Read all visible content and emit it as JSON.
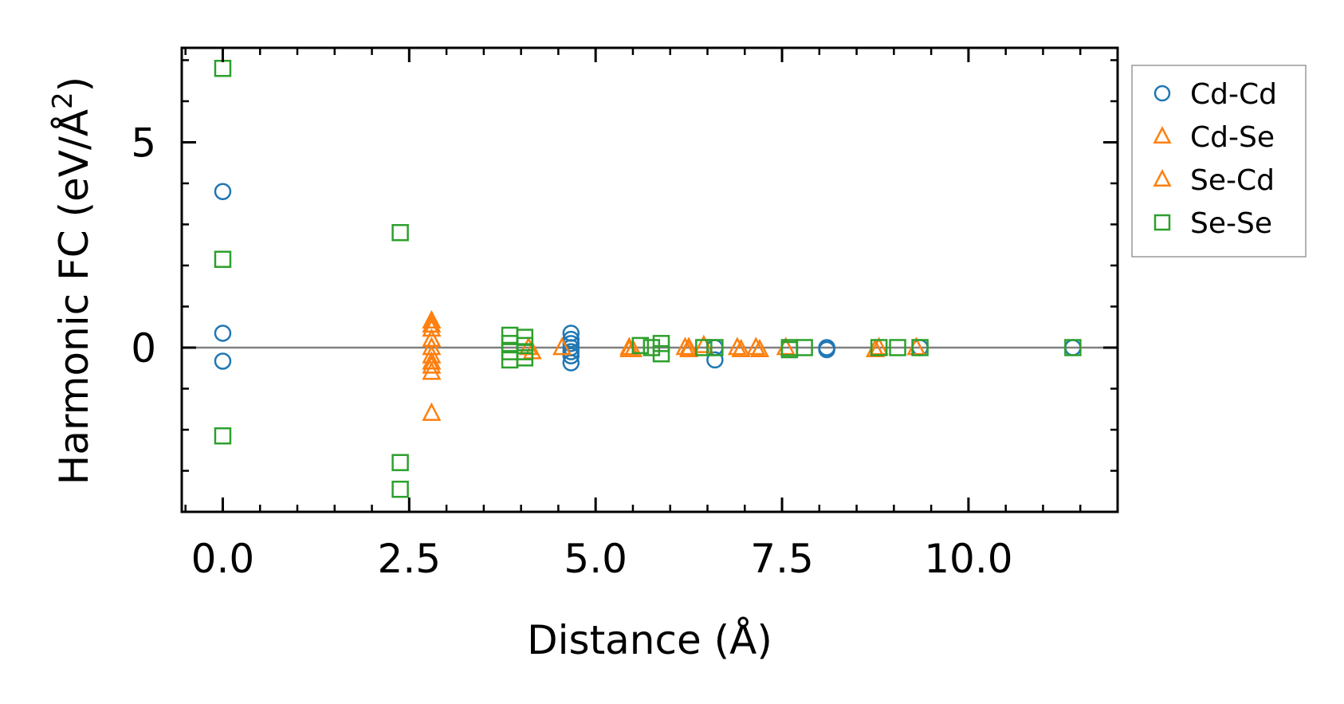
{
  "chart_data": {
    "type": "scatter",
    "xlabel": "Distance (Å)",
    "ylabel_main": "Harmonic FC (eV/Å",
    "ylabel_sup": "2",
    "ylabel_close": ")",
    "xlim": [
      -0.55,
      12.0
    ],
    "ylim": [
      -4.0,
      7.3
    ],
    "x_ticks": [
      0.0,
      2.5,
      5.0,
      7.5,
      10.0
    ],
    "x_tick_labels": [
      "0.0",
      "2.5",
      "5.0",
      "7.5",
      "10.0"
    ],
    "y_ticks": [
      0,
      5
    ],
    "y_tick_labels": [
      "0",
      "5"
    ],
    "x_minor_step": 0.5,
    "y_minor_step": 1.0,
    "zero_line": 0,
    "series": [
      {
        "name": "Cd-Cd",
        "marker": "circle",
        "color": "#1f77b4",
        "points": [
          [
            0,
            3.8
          ],
          [
            0,
            0.35
          ],
          [
            0,
            -0.33
          ],
          [
            4.67,
            0.35
          ],
          [
            4.67,
            0.2
          ],
          [
            4.67,
            0.1
          ],
          [
            4.67,
            0.0
          ],
          [
            4.67,
            -0.1
          ],
          [
            4.67,
            -0.2
          ],
          [
            4.67,
            -0.37
          ],
          [
            6.6,
            -0.3
          ],
          [
            6.6,
            0.0
          ],
          [
            8.1,
            0.0
          ],
          [
            8.1,
            -0.05
          ],
          [
            9.35,
            0.0
          ],
          [
            11.4,
            0.0
          ]
        ]
      },
      {
        "name": "Cd-Se",
        "marker": "triangle",
        "color": "#ff7f0e",
        "points": [
          [
            2.8,
            0.65
          ],
          [
            2.8,
            0.45
          ],
          [
            2.8,
            0.2
          ],
          [
            2.8,
            -0.2
          ],
          [
            2.8,
            -0.45
          ],
          [
            2.8,
            -0.6
          ],
          [
            2.8,
            -1.6
          ],
          [
            4.15,
            -0.1
          ],
          [
            4.55,
            0.0
          ],
          [
            5.45,
            0.0
          ],
          [
            5.5,
            -0.05
          ],
          [
            6.2,
            0.0
          ],
          [
            6.25,
            -0.05
          ],
          [
            6.45,
            0.05
          ],
          [
            6.9,
            0.0
          ],
          [
            7.15,
            0.0
          ],
          [
            7.55,
            0.0
          ],
          [
            8.8,
            0.0
          ],
          [
            9.3,
            0.0
          ]
        ]
      },
      {
        "name": "Se-Cd",
        "marker": "triangle",
        "color": "#ff7f0e",
        "points": [
          [
            2.8,
            0.55
          ],
          [
            2.8,
            0.0
          ],
          [
            2.8,
            -0.35
          ],
          [
            4.1,
            0.0
          ],
          [
            5.45,
            -0.05
          ],
          [
            6.25,
            0.0
          ],
          [
            6.95,
            -0.05
          ],
          [
            7.2,
            -0.05
          ],
          [
            8.75,
            -0.05
          ]
        ]
      },
      {
        "name": "Se-Se",
        "marker": "square",
        "color": "#2ca02c",
        "points": [
          [
            0,
            6.8
          ],
          [
            0,
            2.15
          ],
          [
            0,
            -2.15
          ],
          [
            2.38,
            2.8
          ],
          [
            2.38,
            -2.8
          ],
          [
            2.38,
            -3.45
          ],
          [
            3.85,
            0.3
          ],
          [
            3.85,
            0.1
          ],
          [
            3.85,
            -0.1
          ],
          [
            3.85,
            -0.3
          ],
          [
            4.05,
            0.25
          ],
          [
            4.05,
            0.05
          ],
          [
            4.05,
            -0.1
          ],
          [
            4.05,
            -0.25
          ],
          [
            5.6,
            0.05
          ],
          [
            5.75,
            0.0
          ],
          [
            5.88,
            0.1
          ],
          [
            5.88,
            -0.15
          ],
          [
            6.45,
            0.0
          ],
          [
            6.6,
            0.0
          ],
          [
            7.6,
            0.0
          ],
          [
            7.6,
            -0.05
          ],
          [
            7.8,
            0.0
          ],
          [
            8.8,
            0.0
          ],
          [
            9.05,
            0.0
          ],
          [
            9.35,
            0.0
          ],
          [
            11.4,
            0.0
          ]
        ]
      }
    ],
    "legend": {
      "placement": "outside-right",
      "entries": [
        {
          "label": "Cd-Cd",
          "marker": "circle",
          "color": "#1f77b4"
        },
        {
          "label": "Cd-Se",
          "marker": "triangle",
          "color": "#ff7f0e"
        },
        {
          "label": "Se-Cd",
          "marker": "triangle",
          "color": "#ff7f0e"
        },
        {
          "label": "Se-Se",
          "marker": "square",
          "color": "#2ca02c"
        }
      ]
    }
  }
}
